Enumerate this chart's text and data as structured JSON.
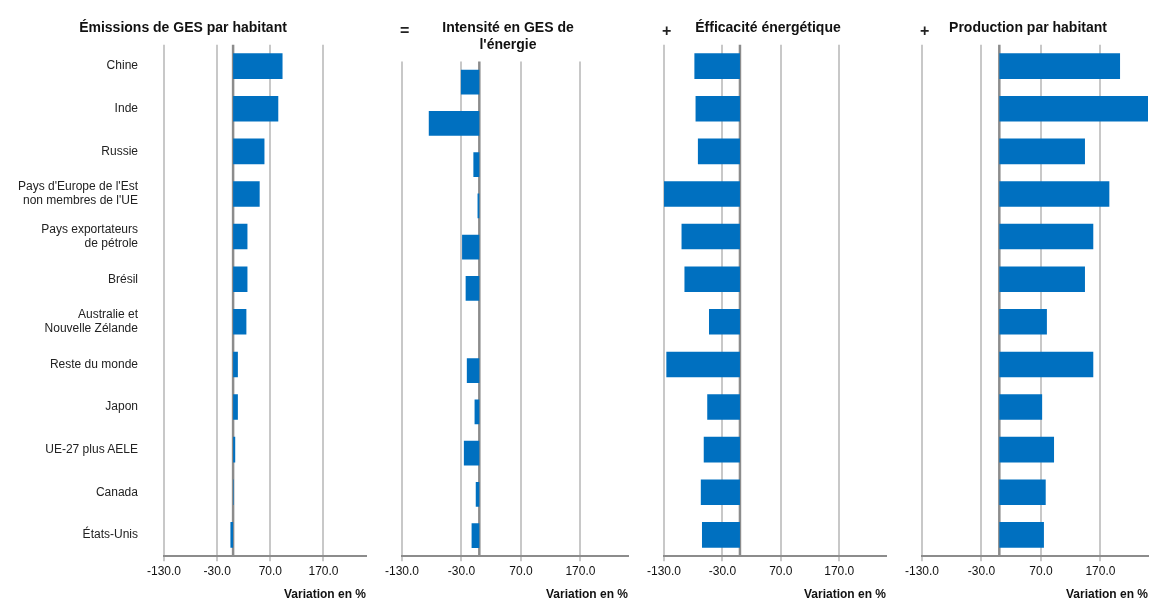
{
  "chart_data": [
    {
      "type": "bar",
      "orientation": "horizontal",
      "title": "Émissions de GES par habitant",
      "xlabel": "Variation en %",
      "categories": [
        "Chine",
        "Inde",
        "Russie",
        "Pays d'Europe de l'Est\nnon membres de l'UE",
        "Pays exportateurs\nde pétrole",
        "Brésil",
        "Australie et\nNouvelle Zélande",
        "Reste du monde",
        "Japon",
        "UE-27 plus AELE",
        "Canada",
        "États-Unis"
      ],
      "values": [
        93,
        85,
        59,
        50,
        27,
        27,
        25,
        9,
        9,
        4,
        1,
        -5
      ],
      "color": "#0070c0",
      "xlim": [
        -130,
        250
      ],
      "xticks": [
        {
          "value": -130,
          "label": "-130.0"
        },
        {
          "value": -30,
          "label": "-30.0"
        },
        {
          "value": 70,
          "label": "70.0"
        },
        {
          "value": 170,
          "label": "170.0"
        }
      ],
      "grid": "x"
    },
    {
      "type": "bar",
      "orientation": "horizontal",
      "title": "Intensité en GES de l'énergie",
      "xlabel": "Variation en %",
      "annotations": [
        "="
      ],
      "categories": [
        null,
        null,
        null,
        null,
        null,
        null,
        null,
        null,
        null,
        null,
        null,
        null
      ],
      "values": [
        -31,
        -85,
        -10,
        -3,
        -29,
        -23,
        0,
        -21,
        -8,
        -26,
        -6,
        -13
      ],
      "color": "#0070c0",
      "xlim": [
        -130,
        250
      ],
      "xticks": [
        {
          "value": -130,
          "label": "-130.0"
        },
        {
          "value": -30,
          "label": "-30.0"
        },
        {
          "value": 70,
          "label": "70.0"
        },
        {
          "value": 170,
          "label": "170.0"
        }
      ],
      "grid": "x",
      "tick_labels": "x"
    },
    {
      "type": "bar",
      "orientation": "horizontal",
      "title": "Éfficacité énergétique",
      "xlabel": "Variation en %",
      "annotations": [
        "+"
      ],
      "categories": [
        null,
        null,
        null,
        null,
        null,
        null,
        null,
        null,
        null,
        null,
        null,
        null
      ],
      "values": [
        -78,
        -76,
        -72,
        -130,
        -100,
        -95,
        -53,
        -126,
        -56,
        -62,
        -67,
        -65
      ],
      "color": "#0070c0",
      "xlim": [
        -130,
        250
      ],
      "xticks": [
        {
          "value": -130,
          "label": "-130.0"
        },
        {
          "value": -30,
          "label": "-30.0"
        },
        {
          "value": 70,
          "label": "70.0"
        },
        {
          "value": 170,
          "label": "170.0"
        }
      ],
      "grid": "x",
      "tick_labels": "x"
    },
    {
      "type": "bar",
      "orientation": "horizontal",
      "title": "Production par habitant",
      "xlabel": "Variation en %",
      "annotations": [
        "+"
      ],
      "categories": [
        null,
        null,
        null,
        null,
        null,
        null,
        null,
        null,
        null,
        null,
        null,
        null
      ],
      "values": [
        203,
        250,
        144,
        185,
        158,
        144,
        80,
        158,
        72,
        92,
        78,
        75
      ],
      "color": "#0070c0",
      "xlim": [
        -130,
        250
      ],
      "xticks": [
        {
          "value": -130,
          "label": "-130.0"
        },
        {
          "value": -30,
          "label": "-30.0"
        },
        {
          "value": 70,
          "label": "70.0"
        },
        {
          "value": 170,
          "label": "170.0"
        }
      ],
      "grid": "x",
      "tick_labels": "x"
    }
  ]
}
